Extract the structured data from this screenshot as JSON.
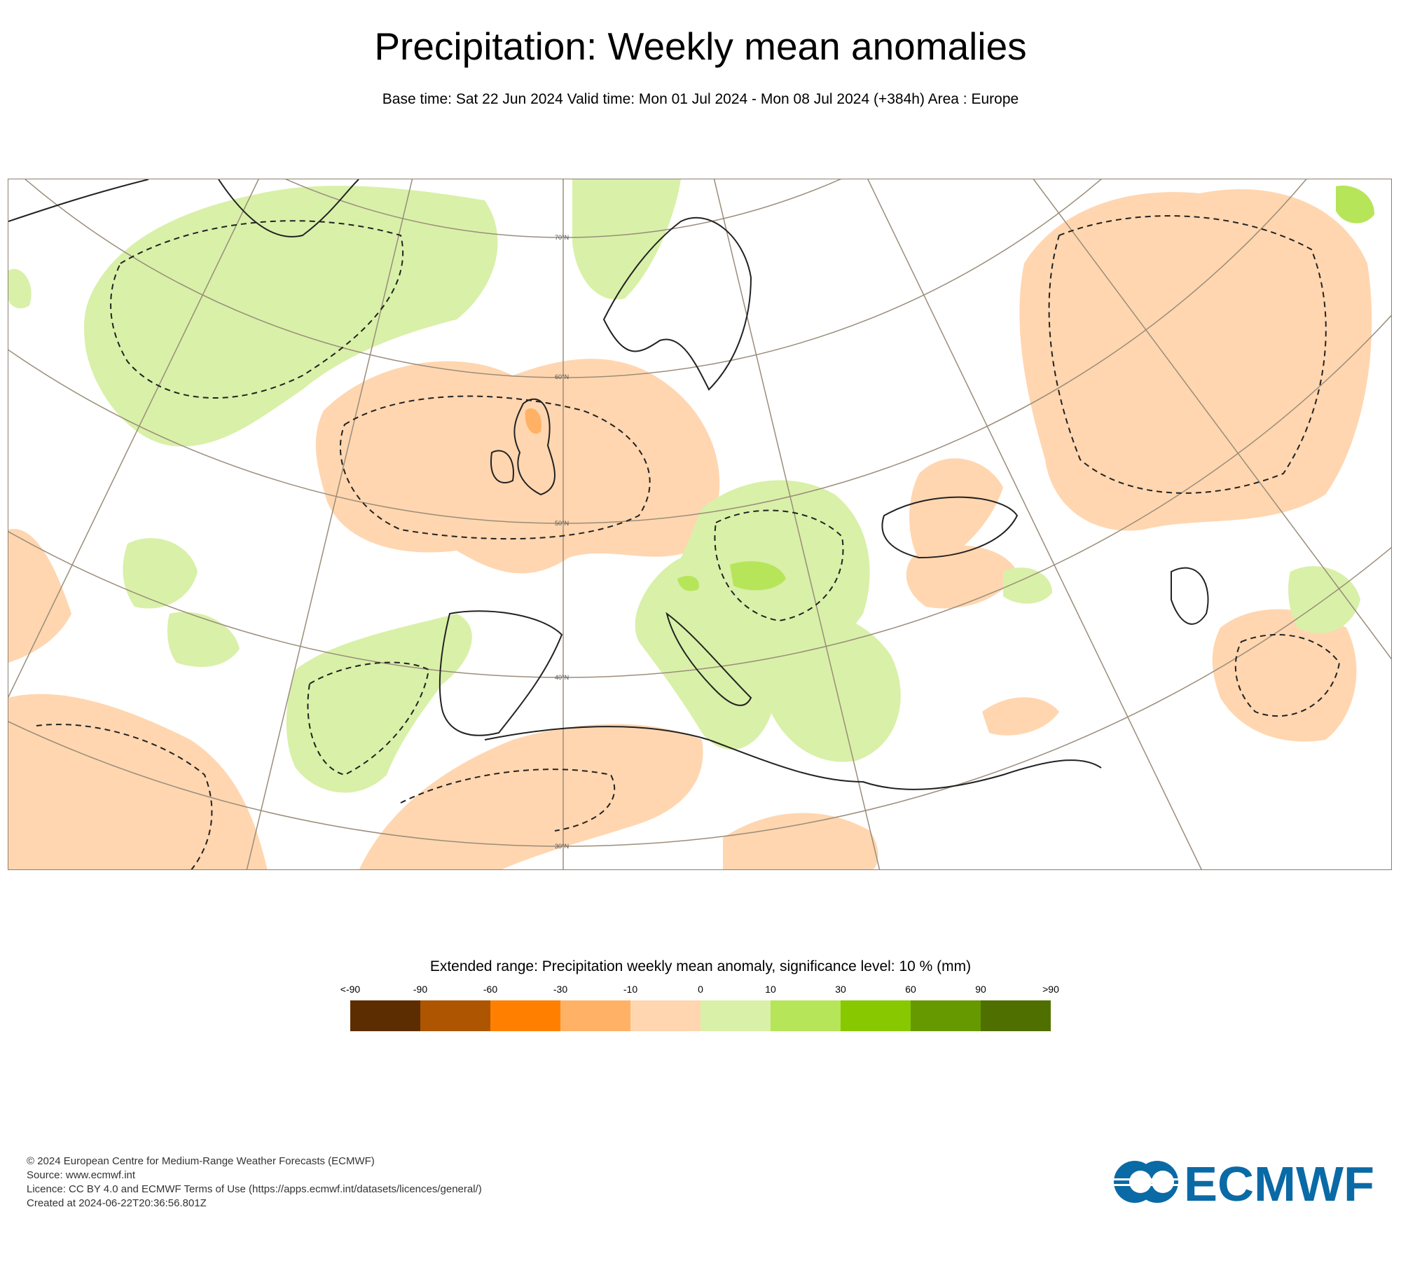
{
  "header": {
    "title": "Precipitation: Weekly mean anomalies",
    "subtitle": "Base time: Sat 22 Jun 2024 Valid time: Mon 01 Jul 2024 - Mon 08 Jul 2024 (+384h) Area : Europe"
  },
  "map": {
    "lat_labels": [
      "70°N",
      "60°N",
      "50°N",
      "40°N",
      "30°N"
    ],
    "colors": {
      "dry": "#ffd6b0",
      "dry2": "#ffb266",
      "wet": "#d9f0a8",
      "wet2": "#b6e55a",
      "coast": "#222222",
      "grid": "#9a8d7a"
    }
  },
  "legend": {
    "title": "Extended range: Precipitation weekly mean anomaly, significance level: 10 % (mm)",
    "labels": [
      "<-90",
      "-90",
      "-60",
      "-30",
      "-10",
      "0",
      "10",
      "30",
      "60",
      "90",
      ">90"
    ],
    "colors": [
      "#5c2d00",
      "#ad5500",
      "#ff8000",
      "#ffb266",
      "#ffd6b0",
      "#d9f0a8",
      "#b6e55a",
      "#88c800",
      "#669900",
      "#4f7000"
    ]
  },
  "footer": {
    "copyright": "© 2024 European Centre for Medium-Range Weather Forecasts (ECMWF)",
    "source": "Source: www.ecmwf.int",
    "licence": "Licence: CC BY 4.0 and ECMWF Terms of Use (https://apps.ecmwf.int/datasets/licences/general/)",
    "created": "Created at 2024-06-22T20:36:56.801Z"
  },
  "logo": {
    "text": "ECMWF",
    "color": "#0a6aa6"
  }
}
